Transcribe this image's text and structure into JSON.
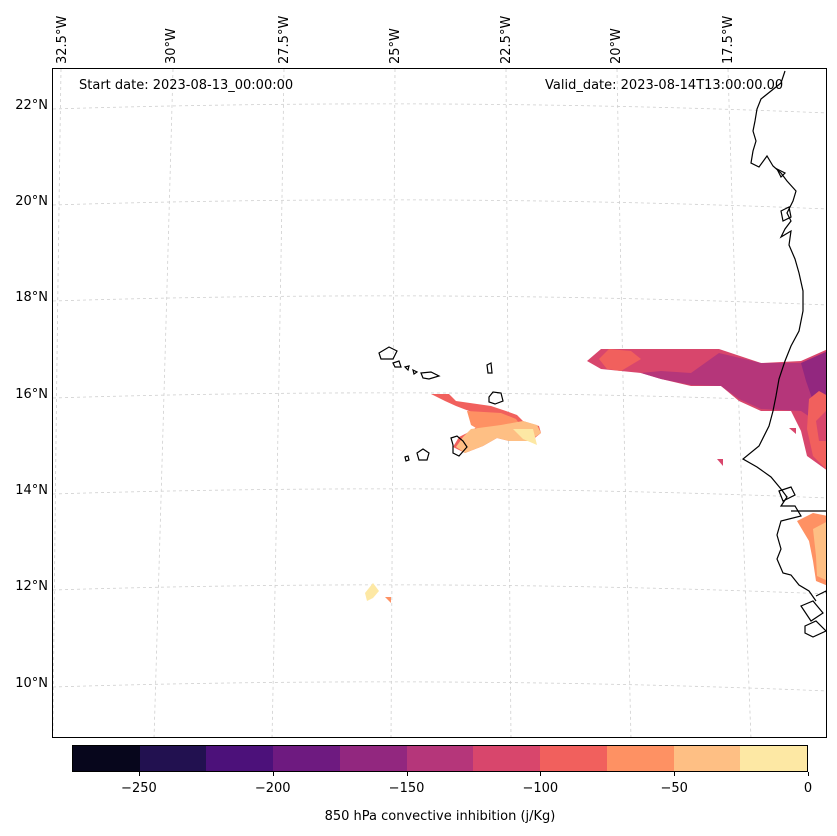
{
  "header": {
    "start_date": "Start date: 2023-08-13_00:00:00",
    "valid_date": "Valid_date: 2023-08-14T13:00:00.00"
  },
  "longitude_labels": [
    "32.5°W",
    "30°W",
    "27.5°W",
    "25°W",
    "22.5°W",
    "20°W",
    "17.5°W"
  ],
  "latitude_labels": [
    "22°N",
    "20°N",
    "18°N",
    "16°N",
    "14°N",
    "12°N",
    "10°N"
  ],
  "colorbar": {
    "label": "850 hPa convective inhibition (j/Kg)",
    "range": [
      -275,
      0
    ],
    "tick_labels": [
      "−250",
      "−200",
      "−150",
      "−100",
      "−50",
      "0"
    ],
    "colors": [
      "#07061c",
      "#221150",
      "#4c117a",
      "#6e1a80",
      "#92277f",
      "#b5367a",
      "#d8466c",
      "#f1605d",
      "#fe9163",
      "#febf84",
      "#fde8a4"
    ]
  },
  "map": {
    "coastline_color": "#000000",
    "grid_color": "#cccccc"
  }
}
